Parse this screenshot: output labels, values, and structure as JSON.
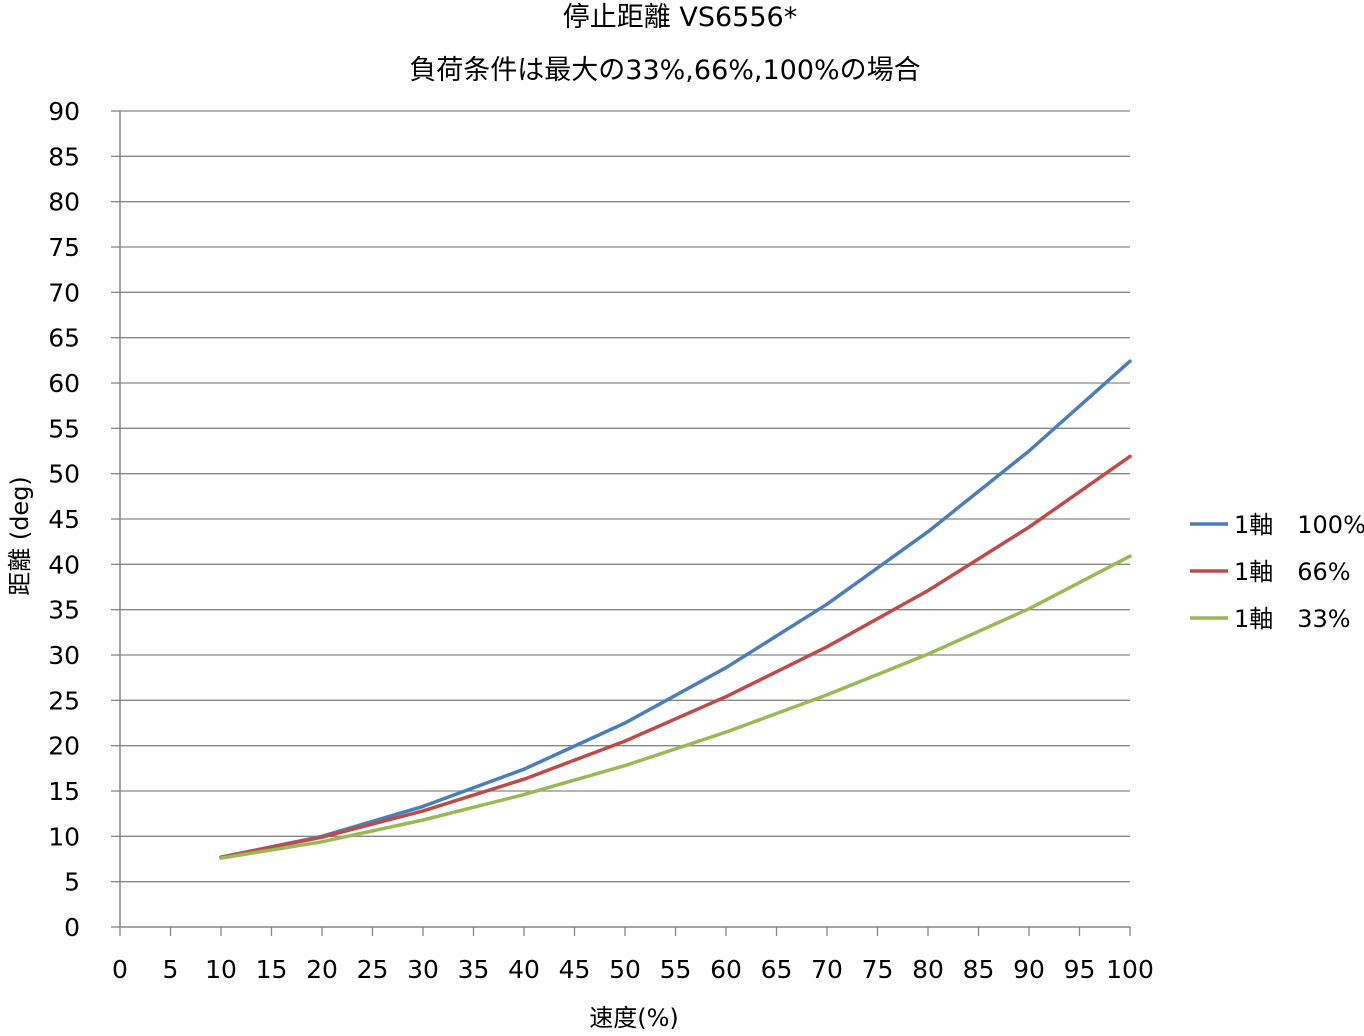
{
  "chart_data": {
    "type": "line",
    "title": "停止距離 VS6556*",
    "subtitle": "負荷条件は最大の33%,66%,100%の場合",
    "xlabel": "速度(%)",
    "ylabel": "距離 (deg)",
    "xlim": [
      0,
      100
    ],
    "ylim": [
      0,
      90
    ],
    "x_ticks": [
      "0",
      "5",
      "10",
      "15",
      "20",
      "25",
      "30",
      "35",
      "40",
      "45",
      "50",
      "55",
      "60",
      "65",
      "70",
      "75",
      "80",
      "85",
      "90",
      "95",
      "100"
    ],
    "y_ticks": [
      "0",
      "5",
      "10",
      "15",
      "20",
      "25",
      "30",
      "35",
      "40",
      "45",
      "50",
      "55",
      "60",
      "65",
      "70",
      "75",
      "80",
      "85",
      "90"
    ],
    "grid": "horizontal",
    "legend_position": "right",
    "x": [
      10,
      20,
      30,
      40,
      50,
      60,
      70,
      80,
      90,
      100
    ],
    "series": [
      {
        "name": "1軸　100%",
        "color": "#4a7ebb",
        "values": [
          7.7,
          10.0,
          13.3,
          17.4,
          22.5,
          28.6,
          35.6,
          43.6,
          52.5,
          62.4
        ]
      },
      {
        "name": "1軸　66%",
        "color": "#be4b48",
        "values": [
          7.7,
          9.9,
          12.8,
          16.3,
          20.5,
          25.4,
          30.9,
          37.1,
          44.1,
          51.9
        ]
      },
      {
        "name": "1軸　33%",
        "color": "#98b954",
        "values": [
          7.6,
          9.4,
          11.8,
          14.6,
          17.8,
          21.5,
          25.6,
          30.1,
          35.1,
          40.9
        ]
      }
    ]
  }
}
